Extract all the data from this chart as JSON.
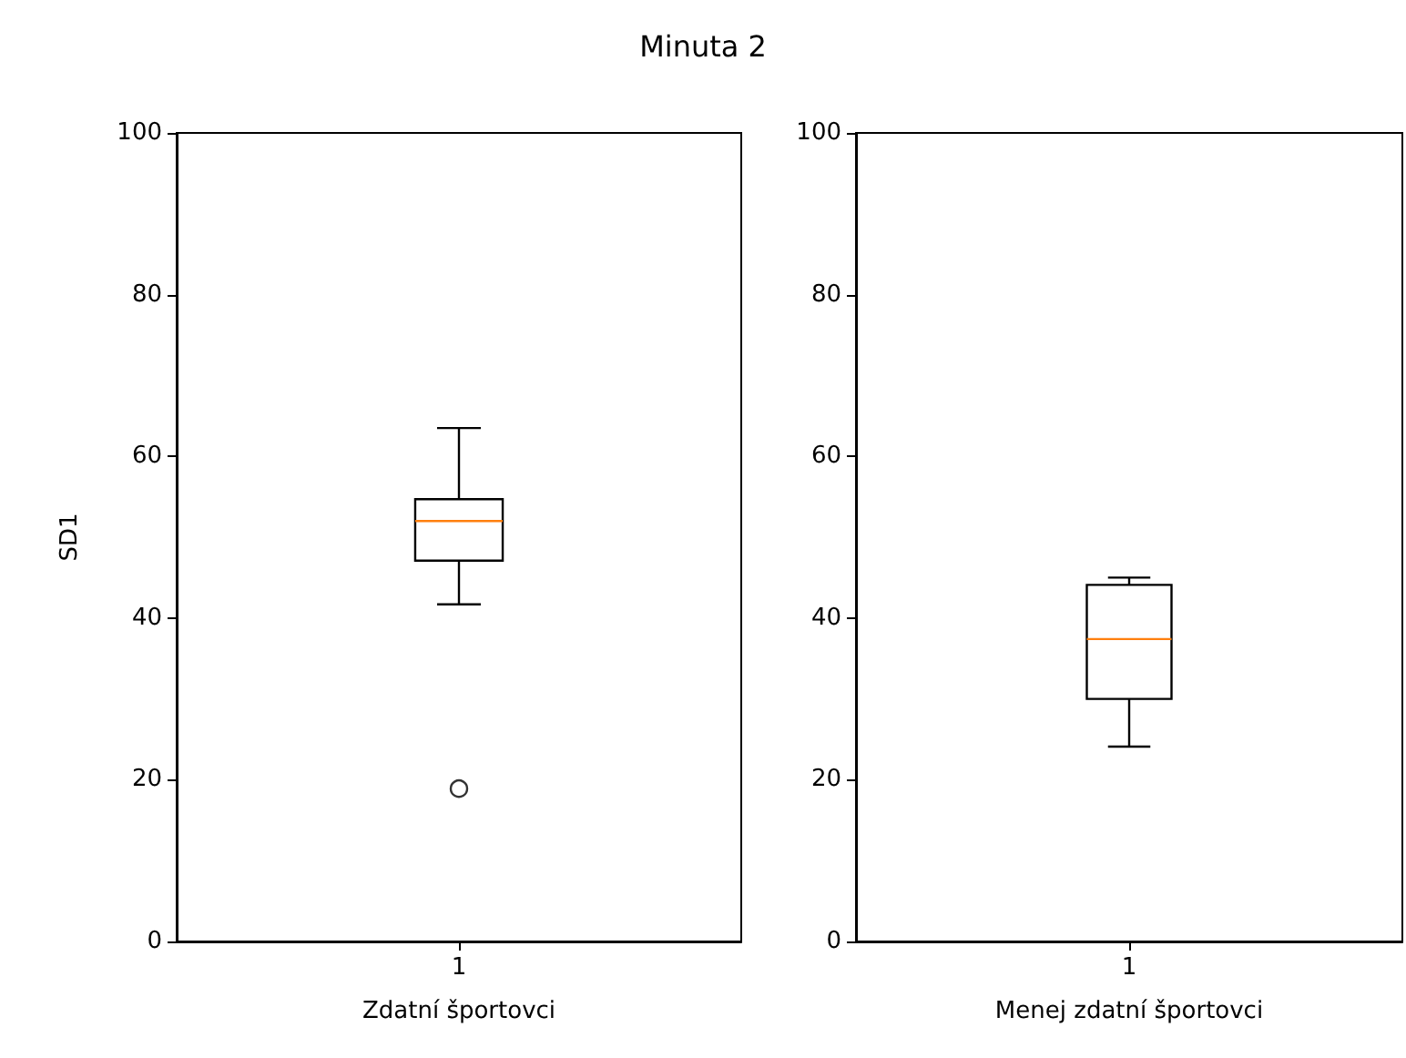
{
  "chart_data": [
    {
      "type": "box",
      "title": "Minuta 2",
      "categories": [
        "1"
      ],
      "xlabel": "Zdatní športovci",
      "ylabel": "SD1",
      "ylim": [
        0,
        100
      ],
      "yticks": [
        0,
        20,
        40,
        60,
        80,
        100
      ],
      "grid": false,
      "boxes": [
        {
          "low": 41.7,
          "q1": 47.1,
          "median": 52.0,
          "q3": 54.7,
          "high": 63.5,
          "outliers": [
            18.9
          ]
        }
      ]
    },
    {
      "type": "box",
      "categories": [
        "1"
      ],
      "xlabel": "Menej zdatní športovci",
      "ylim": [
        0,
        100
      ],
      "yticks": [
        0,
        20,
        40,
        60,
        80,
        100
      ],
      "grid": false,
      "boxes": [
        {
          "low": 24.1,
          "q1": 30.0,
          "median": 37.4,
          "q3": 44.1,
          "high": 45.0
        }
      ]
    }
  ]
}
